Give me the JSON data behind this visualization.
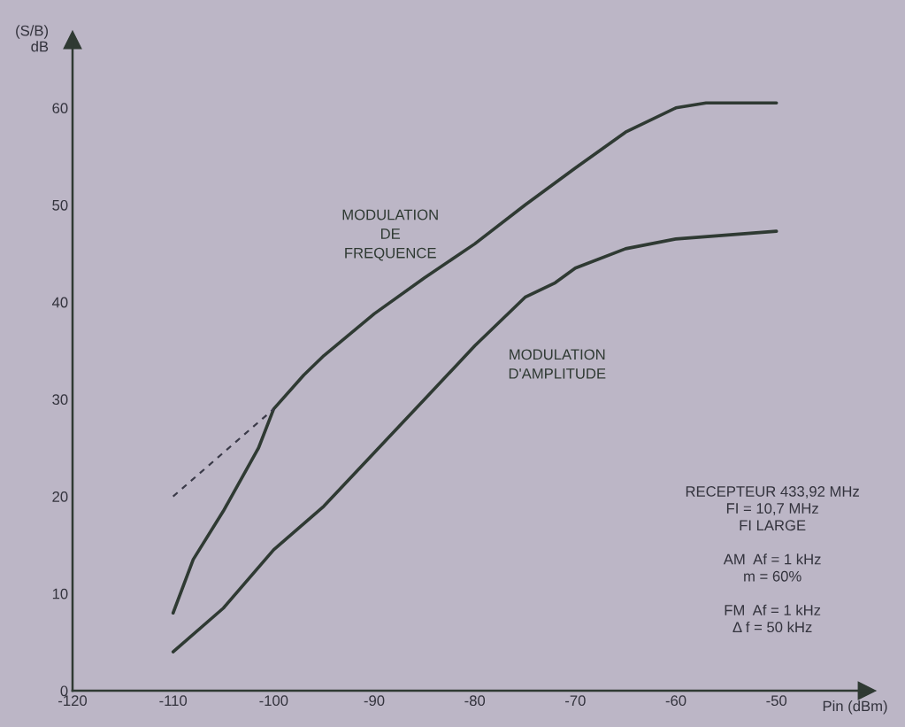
{
  "chart_data": {
    "type": "line",
    "xlabel": "Pin (dBm)",
    "ylabel": "(S/B)\ndB",
    "xlim": [
      -120,
      -41
    ],
    "ylim": [
      0,
      67
    ],
    "xticks": [
      -120,
      -110,
      -100,
      -90,
      -80,
      -70,
      -60,
      -50
    ],
    "yticks": [
      0,
      10,
      20,
      30,
      40,
      50,
      60
    ],
    "grid": false,
    "legend": false,
    "series": [
      {
        "name": "MODULATION\nDE\nFREQUENCE",
        "color": "#2f3a33",
        "line_style": "solid",
        "x": [
          -110,
          -108,
          -105,
          -101.5,
          -100,
          -97,
          -95,
          -90,
          -85,
          -80,
          -75,
          -70,
          -65,
          -60,
          -57,
          -50
        ],
        "values": [
          8,
          13.5,
          18.5,
          25,
          29,
          32.5,
          34.5,
          38.8,
          42.5,
          46,
          50,
          53.8,
          57.5,
          60,
          60.5,
          60.5
        ]
      },
      {
        "name": "MODULATION\nD'AMPLITUDE",
        "color": "#2f3a33",
        "line_style": "solid",
        "x": [
          -110,
          -105,
          -100,
          -95,
          -90,
          -85,
          -80,
          -75,
          -72,
          -70,
          -65,
          -60,
          -50
        ],
        "values": [
          4,
          8.5,
          14.5,
          19,
          24.5,
          30,
          35.5,
          40.5,
          42,
          43.5,
          45.5,
          46.5,
          47.3
        ]
      },
      {
        "color": "#3a3a48",
        "line_style": "dashed",
        "x": [
          -110,
          -100
        ],
        "values": [
          20,
          29
        ]
      }
    ],
    "annotations": [
      "RECEPTEUR 433,92 MHz\nFI = 10,7 MHz\nFI LARGE\n\nAM  Af = 1 kHz\nm = 60%\n\nFM  Af = 1 kHz\nΔ f = 50 kHz"
    ]
  }
}
